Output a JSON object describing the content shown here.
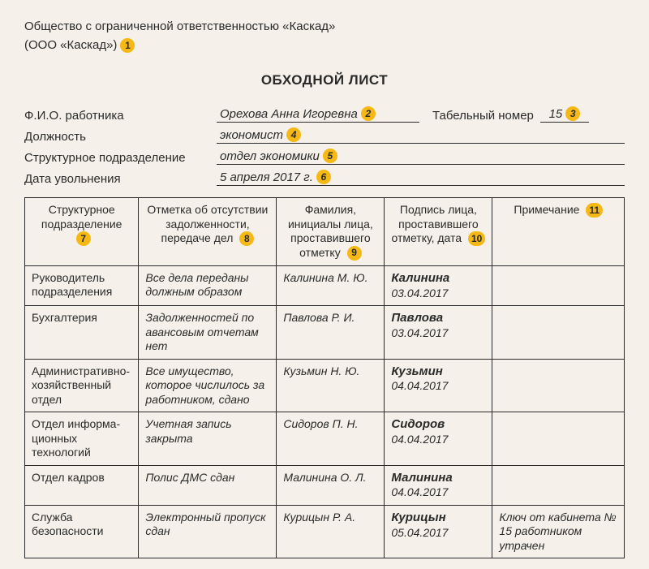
{
  "org": {
    "line1": "Общество с ограниченной ответственностью «Каскад»",
    "line2": "(ООО «Каскад»)",
    "marker": "1"
  },
  "title": "ОБХОДНОЙ ЛИСТ",
  "form": {
    "fio_label": "Ф.И.О. работника",
    "fio_value": "Орехова Анна Игоревна",
    "fio_marker": "2",
    "tab_label": "Табельный номер",
    "tab_value": "15",
    "tab_marker": "3",
    "pos_label": "Должность",
    "pos_value": "экономист",
    "pos_marker": "4",
    "dep_label": "Структурное подразделение",
    "dep_value": "отдел экономики",
    "dep_marker": "5",
    "date_label": "Дата увольнения",
    "date_value": "5 апреля 2017 г.",
    "date_marker": "6"
  },
  "table": {
    "headers": {
      "h0": "Структурное подразделение",
      "m0": "7",
      "h1": "Отметка об отсут­ствии задолженности, передаче дел",
      "m1": "8",
      "h2": "Фамилия, инициалы лица, проставившего отметку",
      "m2": "9",
      "h3": "Подпись лица, проставившего отметку, дата",
      "m3": "10",
      "h4": "Примечание",
      "m4": "11"
    },
    "rows": [
      {
        "dept": "Руководитель подразделения",
        "note": "Все дела переданы должным образом",
        "person": "Калинина М. Ю.",
        "sig_name": "Калинина",
        "sig_date": "03.04.2017",
        "remark": ""
      },
      {
        "dept": "Бухгалтерия",
        "note": "Задолженностей по авансовым от­четам нет",
        "person": "Павлова Р. И.",
        "sig_name": "Павлова",
        "sig_date": "03.04.2017",
        "remark": ""
      },
      {
        "dept": "Администра­тив­но-хозяйственный отдел",
        "note": "Все имущество, которое числилось за работником, сдано",
        "person": "Кузьмин Н. Ю.",
        "sig_name": "Кузьмин",
        "sig_date": "04.04.2017",
        "remark": ""
      },
      {
        "dept": "Отдел информа­цион­ных технологий",
        "note": "Учетная запись закрыта",
        "person": "Сидоров П. Н.",
        "sig_name": "Сидоров",
        "sig_date": "04.04.2017",
        "remark": ""
      },
      {
        "dept": "Отдел кадров",
        "note": "Полис ДМС сдан",
        "person": "Малинина О. Л.",
        "sig_name": "Малинина",
        "sig_date": "04.04.2017",
        "remark": ""
      },
      {
        "dept": "Служба безопасности",
        "note": "Электронный про­пуск сдан",
        "person": "Курицын Р. А.",
        "sig_name": "Курицын",
        "sig_date": "05.04.2017",
        "remark": "Ключ от кабине­та № 15 работ­ником утрачен"
      }
    ]
  }
}
